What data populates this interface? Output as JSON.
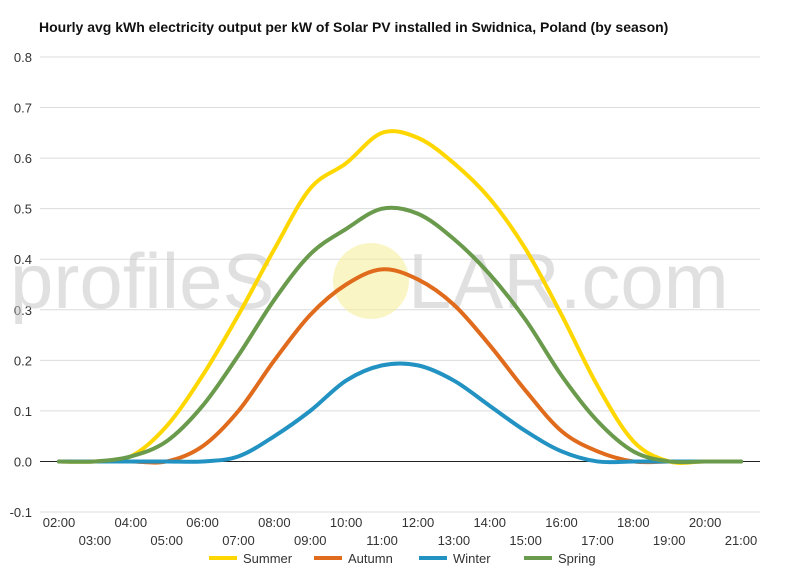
{
  "chart_data": {
    "type": "line",
    "title": "Hourly avg kWh electricity output per kW of Solar PV installed in Swidnica, Poland (by season)",
    "xlabel": "",
    "ylabel": "",
    "ylim": [
      -0.1,
      0.8
    ],
    "yticks": [
      "-0.1",
      "0.0",
      "0.1",
      "0.2",
      "0.3",
      "0.4",
      "0.5",
      "0.6",
      "0.7",
      "0.8"
    ],
    "x": [
      "02:00",
      "03:00",
      "04:00",
      "05:00",
      "06:00",
      "07:00",
      "08:00",
      "09:00",
      "10:00",
      "11:00",
      "12:00",
      "13:00",
      "14:00",
      "15:00",
      "16:00",
      "17:00",
      "18:00",
      "19:00",
      "20:00",
      "21:00"
    ],
    "grid": true,
    "legend": "bottom",
    "series": [
      {
        "name": "Summer",
        "color": "#ffd700",
        "values": [
          0,
          0,
          0.01,
          0.07,
          0.17,
          0.29,
          0.42,
          0.54,
          0.59,
          0.65,
          0.64,
          0.59,
          0.52,
          0.42,
          0.29,
          0.15,
          0.04,
          0,
          0,
          0
        ]
      },
      {
        "name": "Autumn",
        "color": "#e06b1c",
        "values": [
          0,
          0,
          0,
          0,
          0.03,
          0.1,
          0.2,
          0.29,
          0.35,
          0.38,
          0.36,
          0.31,
          0.23,
          0.14,
          0.06,
          0.02,
          0,
          0,
          0,
          0
        ]
      },
      {
        "name": "Winter",
        "color": "#2292c2",
        "values": [
          0,
          0,
          0,
          0,
          0,
          0.01,
          0.05,
          0.1,
          0.16,
          0.19,
          0.19,
          0.16,
          0.11,
          0.06,
          0.02,
          0,
          0,
          0,
          0,
          0
        ]
      },
      {
        "name": "Spring",
        "color": "#6a9a4c",
        "values": [
          0,
          0,
          0.01,
          0.04,
          0.11,
          0.21,
          0.32,
          0.41,
          0.46,
          0.5,
          0.49,
          0.44,
          0.37,
          0.28,
          0.17,
          0.08,
          0.02,
          0,
          0,
          0
        ]
      }
    ]
  },
  "watermark": {
    "text_left": "profileS",
    "text_right": "LAR.com"
  }
}
